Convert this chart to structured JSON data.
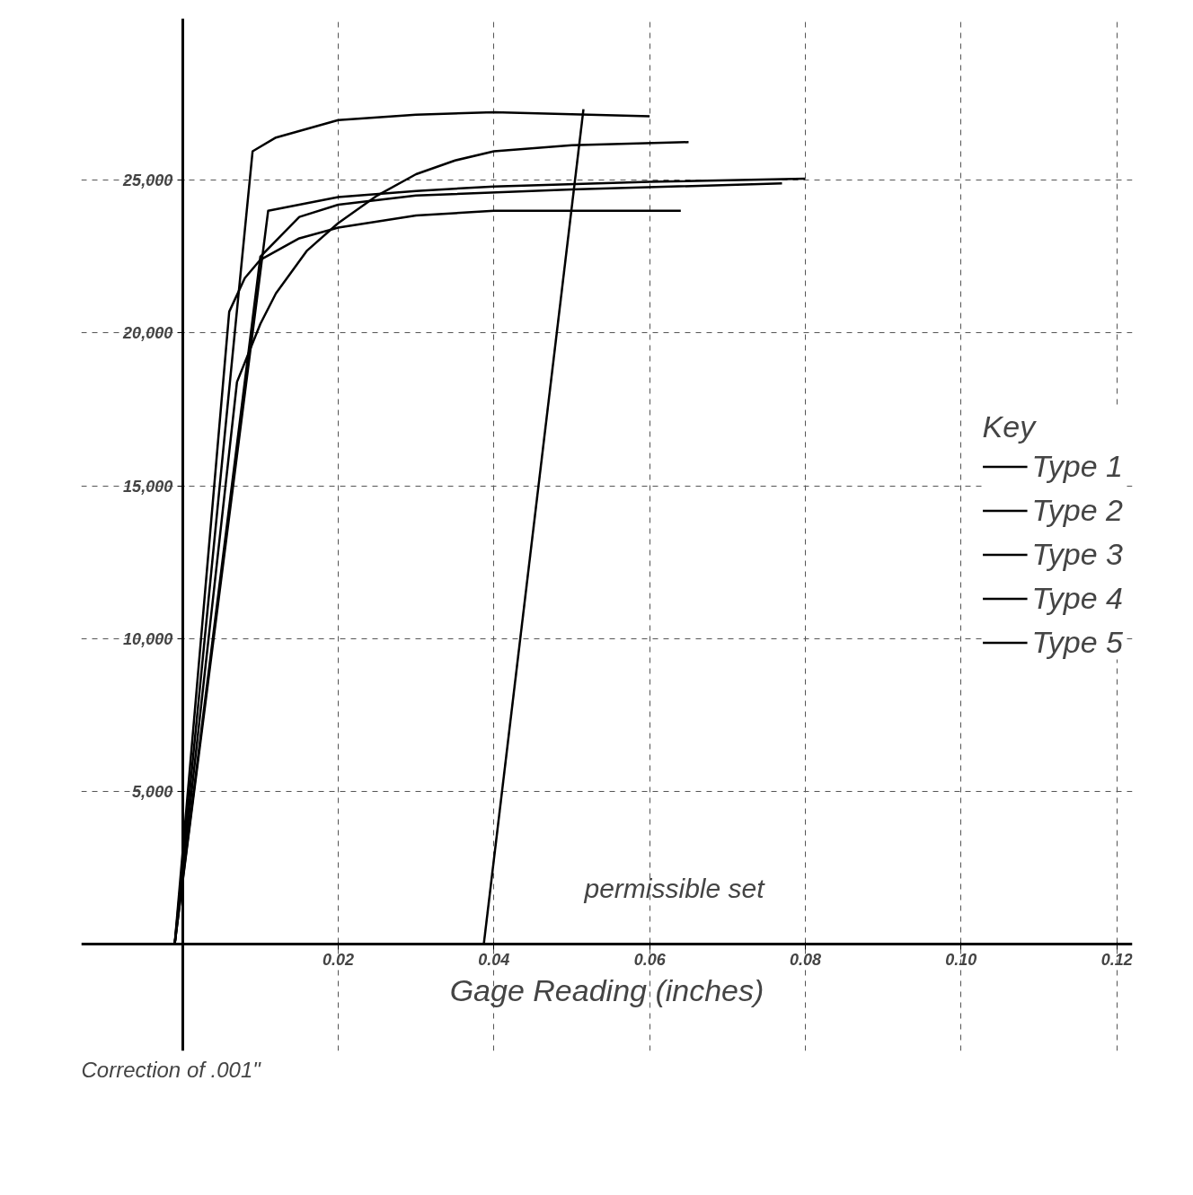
{
  "chart_data": {
    "type": "line",
    "xlabel": "Gage Reading (inches)",
    "legend_title": "Key",
    "xlim": [
      -0.013,
      0.122
    ],
    "ylim": [
      -3500,
      30300
    ],
    "xticks": [
      {
        "value": 0.02,
        "label": "0.02"
      },
      {
        "value": 0.04,
        "label": "0.04"
      },
      {
        "value": 0.06,
        "label": "0.06"
      },
      {
        "value": 0.08,
        "label": "0.08"
      },
      {
        "value": 0.1,
        "label": "0.10"
      },
      {
        "value": 0.12,
        "label": "0.12"
      }
    ],
    "yticks": [
      {
        "value": 5000,
        "label": "5,000"
      },
      {
        "value": 10000,
        "label": "10,000"
      },
      {
        "value": 15000,
        "label": "15,000"
      },
      {
        "value": 20000,
        "label": "20,000"
      },
      {
        "value": 25000,
        "label": "25,000"
      }
    ],
    "grid": true,
    "legend": "right",
    "marker": "none",
    "line_style": "solid",
    "series": [
      {
        "name": "Type 1",
        "color": "#000000",
        "x": [
          -0.001,
          0.009,
          0.012,
          0.02,
          0.03,
          0.04,
          0.06
        ],
        "values": [
          0,
          25950,
          26400,
          26970,
          27150,
          27230,
          27100
        ]
      },
      {
        "name": "Type 2",
        "color": "#000000",
        "x": [
          -0.001,
          0.011,
          0.02,
          0.03,
          0.04,
          0.06,
          0.08
        ],
        "values": [
          0,
          24000,
          24450,
          24650,
          24800,
          24950,
          25050
        ]
      },
      {
        "name": "Type 3",
        "color": "#000000",
        "x": [
          -0.001,
          0.007,
          0.01,
          0.012,
          0.016,
          0.02,
          0.025,
          0.03,
          0.035,
          0.04,
          0.05,
          0.065
        ],
        "values": [
          0,
          18400,
          20300,
          21300,
          22700,
          23600,
          24500,
          25200,
          25650,
          25950,
          26150,
          26250
        ]
      },
      {
        "name": "Type 4",
        "color": "#000000",
        "x": [
          -0.001,
          0.006,
          0.008,
          0.01,
          0.015,
          0.02,
          0.03,
          0.04,
          0.064
        ],
        "values": [
          0,
          20700,
          21800,
          22400,
          23100,
          23450,
          23850,
          24000,
          24000
        ]
      },
      {
        "name": "Type 5",
        "color": "#000000",
        "x": [
          -0.001,
          0.01,
          0.015,
          0.02,
          0.03,
          0.05,
          0.077
        ],
        "values": [
          0,
          22500,
          23800,
          24200,
          24500,
          24700,
          24900
        ]
      },
      {
        "color": "#000000",
        "x": [
          0.0387,
          0.0515
        ],
        "values": [
          0,
          27330
        ]
      }
    ],
    "annotations": [
      "permissible set",
      "Correction of .001\""
    ]
  }
}
